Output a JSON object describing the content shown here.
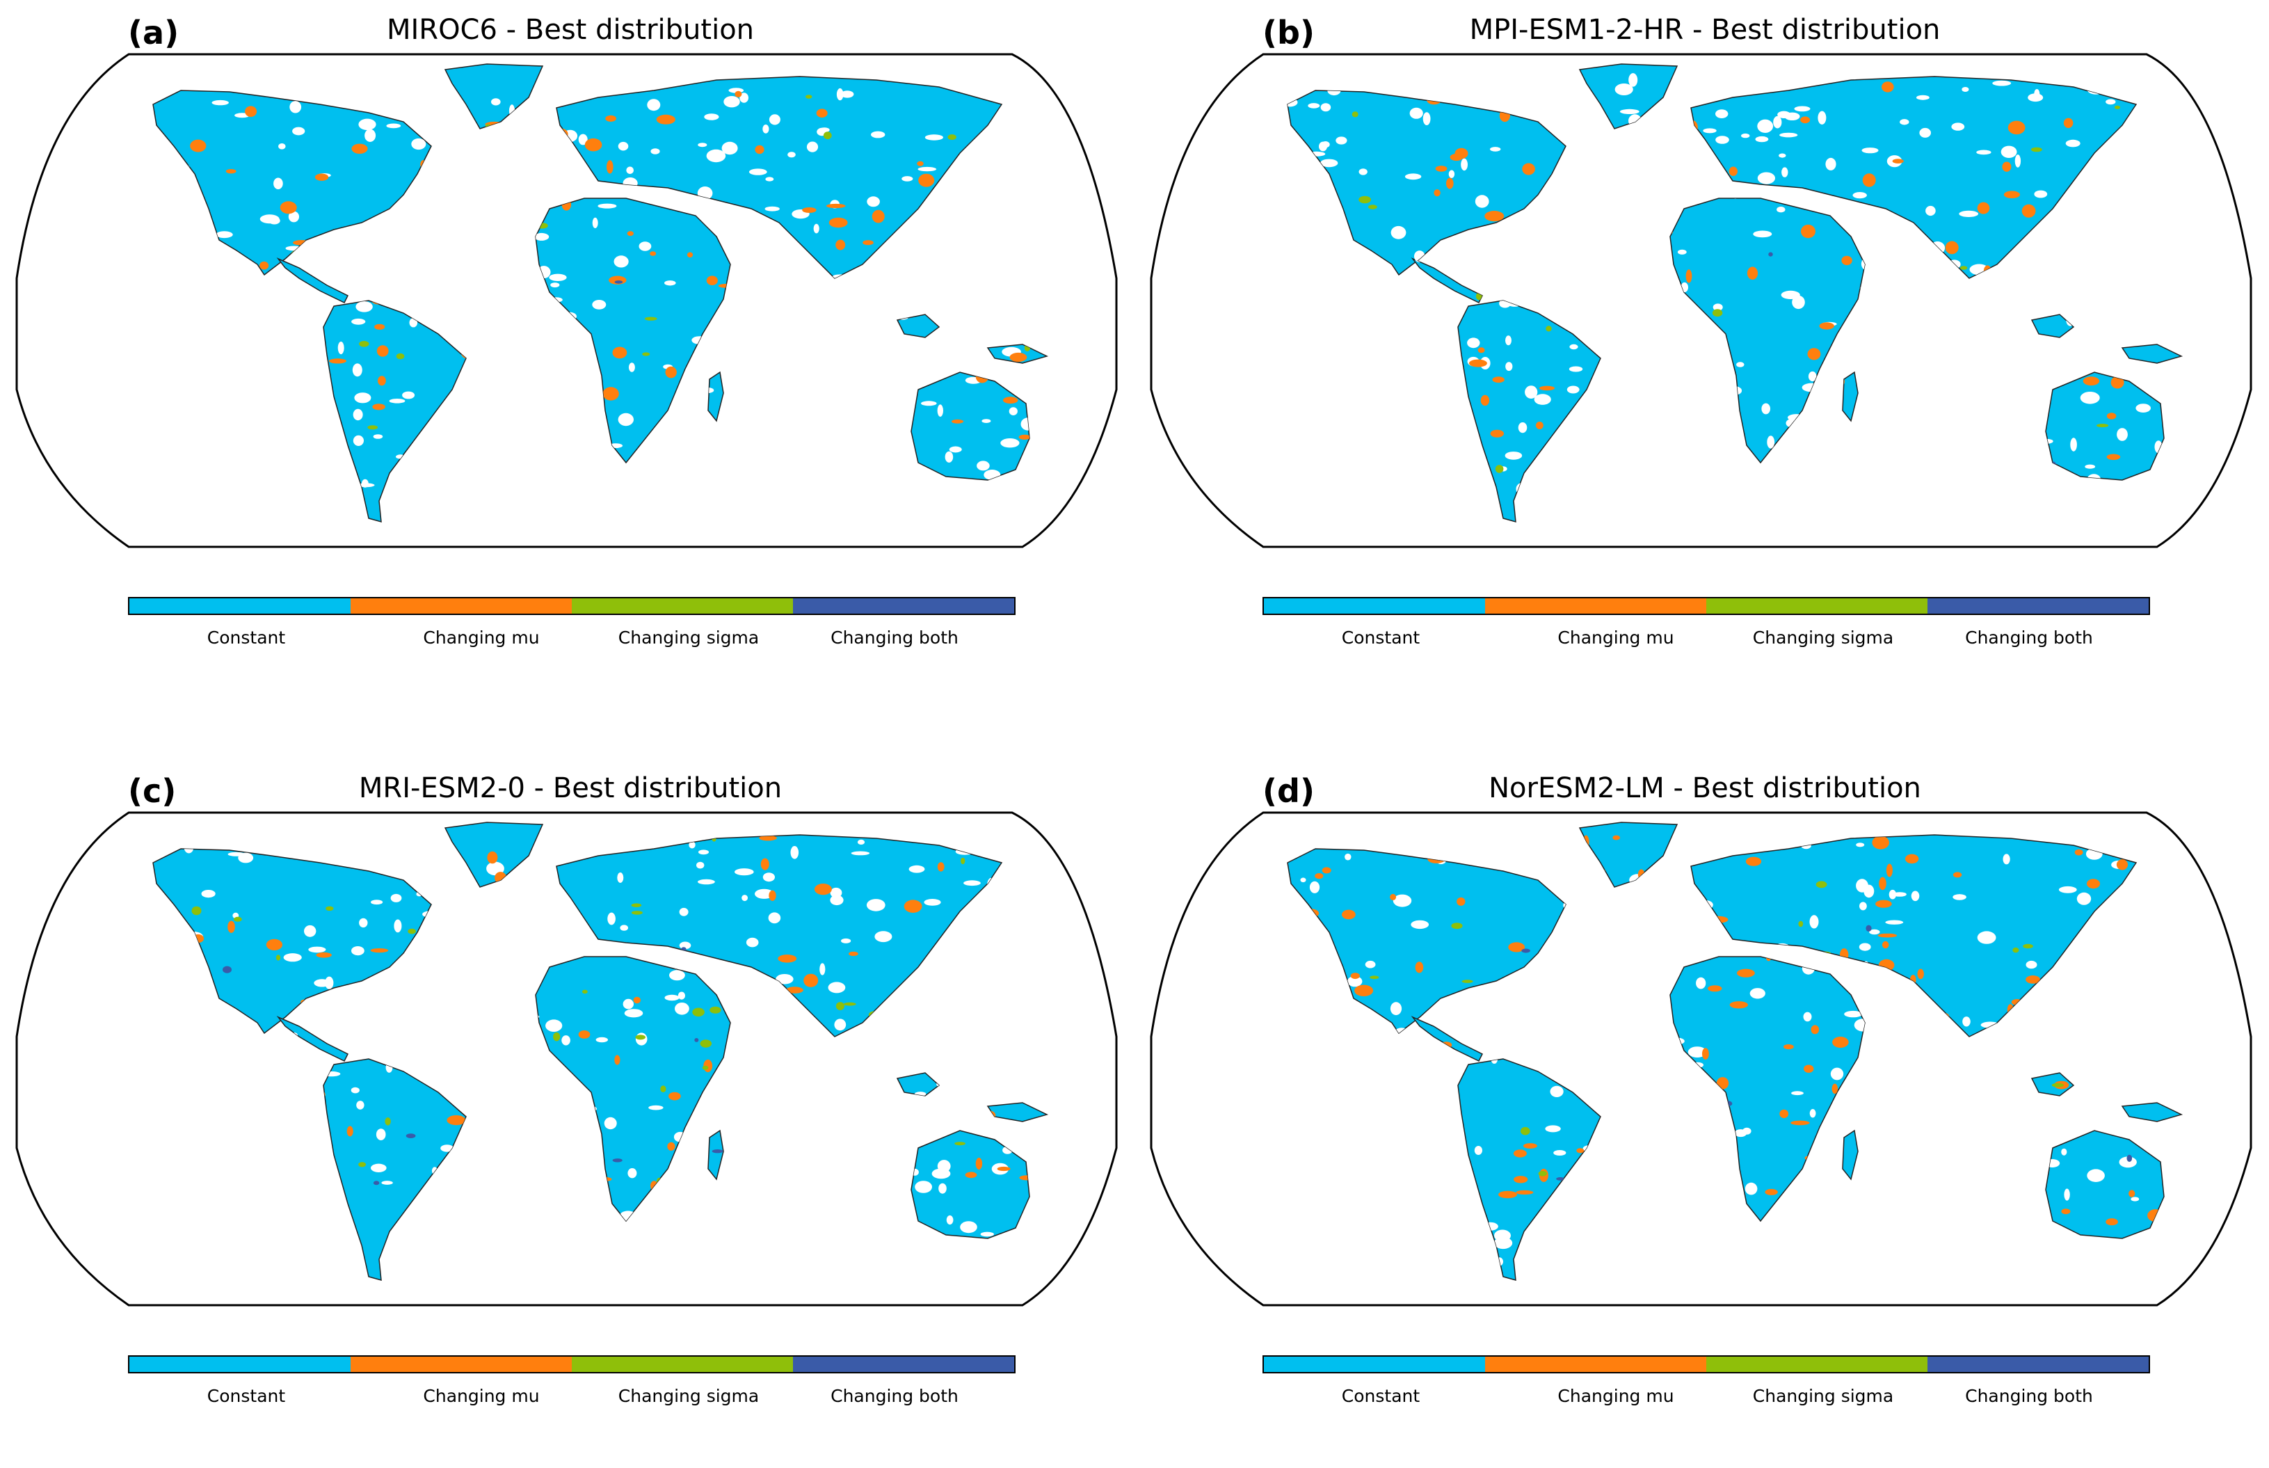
{
  "legend": {
    "labels": [
      "Constant",
      "Changing mu",
      "Changing sigma",
      "Changing both"
    ],
    "colors": [
      "#00bfef",
      "#ff7f0e",
      "#8fbf0a",
      "#3a5ba8"
    ]
  },
  "panels": [
    {
      "letter": "(a)",
      "title": "MIROC6 - Best distribution",
      "model": "MIROC6",
      "dominant": "Constant",
      "secondary": "Changing mu"
    },
    {
      "letter": "(b)",
      "title": "MPI-ESM1-2-HR - Best distribution",
      "model": "MPI-ESM1-2-HR",
      "dominant": "Constant",
      "secondary": "Changing mu"
    },
    {
      "letter": "(c)",
      "title": "MRI-ESM2-0 - Best distribution",
      "model": "MRI-ESM2-0",
      "dominant": "Constant",
      "secondary": "Changing mu"
    },
    {
      "letter": "(d)",
      "title": "NorESM2-LM - Best distribution",
      "model": "NorESM2-LM",
      "dominant": "Constant",
      "secondary": "Changing mu"
    }
  ],
  "colors": {
    "land_base": "#00bfef",
    "frame": "#000000",
    "background": "#ffffff"
  }
}
